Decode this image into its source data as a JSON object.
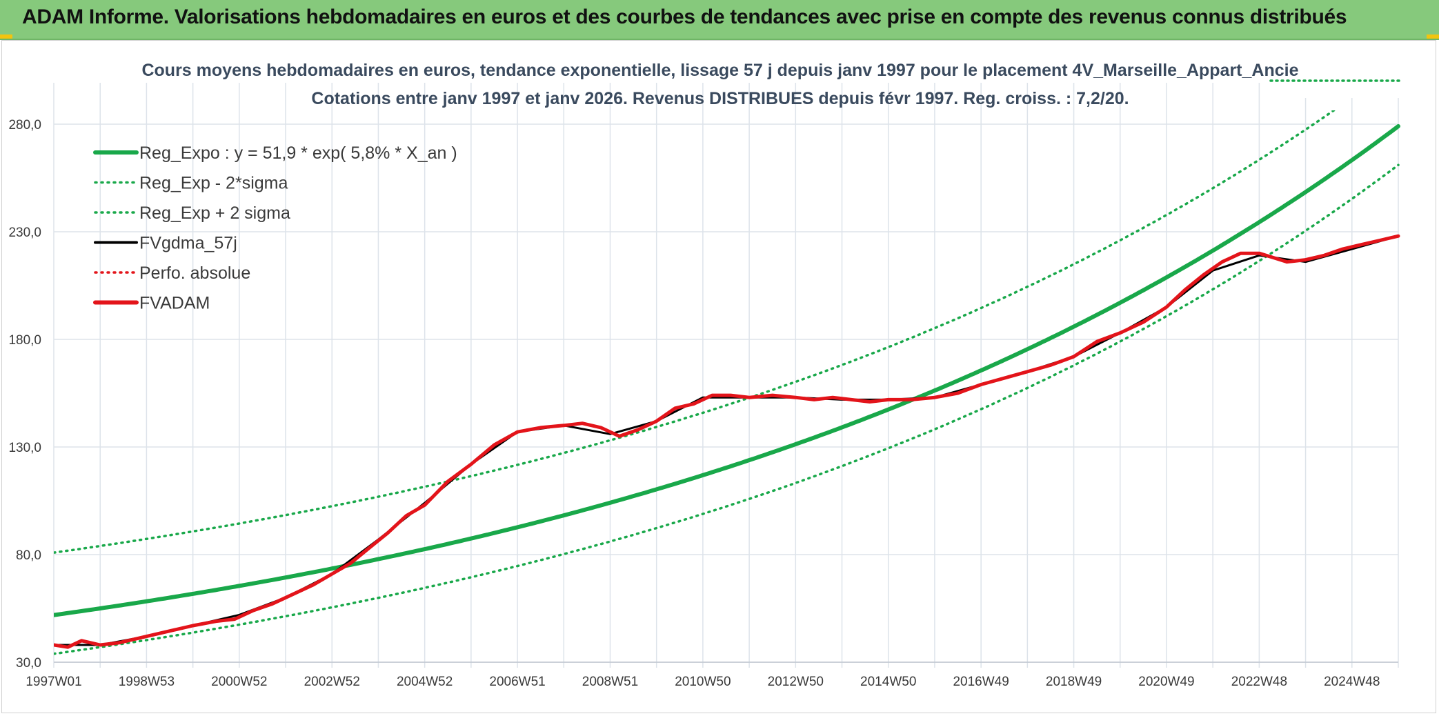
{
  "header": {
    "banner_title": "ADAM Informe. Valorisations hebdomadaires en euros et des courbes de tendances avec prise en compte des revenus connus distribués"
  },
  "colors": {
    "banner_bg": "#86c97c",
    "trend_green": "#19a84a",
    "adam_red": "#e3141a",
    "gdma_black": "#000000",
    "grid": "#dde3ea",
    "corner_accent": "#f2c40f"
  },
  "chart_data": {
    "type": "line",
    "title": "Cours moyens hebdomadaires en euros, tendance exponentielle, lissage 57 j depuis janv 1997 pour le placement 4V_Marseille_Appart_Ancie",
    "subtitle": "Cotations entre janv 1997 et janv 2026. Revenus DISTRIBUES depuis févr 1997. Reg. croiss. : 7,2/20.",
    "xlabel": "",
    "ylabel": "",
    "ylim": [
      30,
      280
    ],
    "xlim": [
      1997.0,
      2026.0
    ],
    "y_ticks": [
      "30,0",
      "80,0",
      "130,0",
      "180,0",
      "230,0",
      "280,0"
    ],
    "y_tick_values": [
      30,
      80,
      130,
      180,
      230,
      280
    ],
    "x_ticks": [
      "1997W01",
      "1998W53",
      "2000W52",
      "2002W52",
      "2004W52",
      "2006W51",
      "2008W51",
      "2010W50",
      "2012W50",
      "2014W50",
      "2016W49",
      "2018W49",
      "2020W49",
      "2022W48",
      "2024W48"
    ],
    "x_tick_values": [
      1997.0,
      1999.0,
      2001.0,
      2003.0,
      2005.0,
      2007.0,
      2009.0,
      2011.0,
      2013.0,
      2015.0,
      2017.0,
      2019.0,
      2021.0,
      2023.0,
      2025.0
    ],
    "grid": true,
    "legend_position": "top-left",
    "legend": [
      {
        "label": "Reg_Expo : y = 51,9 * exp( 5,8% *  X_an )",
        "style": "solid-thick",
        "color": "#19a84a"
      },
      {
        "label": "Reg_Exp - 2*sigma",
        "style": "dotted",
        "color": "#19a84a"
      },
      {
        "label": "Reg_Exp + 2 sigma",
        "style": "dotted",
        "color": "#19a84a"
      },
      {
        "label": "FVgdma_57j",
        "style": "solid",
        "color": "#000000"
      },
      {
        "label": "Perfo. absolue",
        "style": "dotted",
        "color": "#e3141a"
      },
      {
        "label": "FVADAM",
        "style": "solid-thick",
        "color": "#e3141a"
      }
    ],
    "regression": {
      "a": 51.9,
      "rate": 0.058,
      "x0": 1997.0
    },
    "series": [
      {
        "name": "Reg_Expo : y = 51,9 * exp( 5,8% *  X_an )",
        "kind": "function",
        "offset": 0
      },
      {
        "name": "Reg_Exp - 2*sigma",
        "kind": "function",
        "offset": -18
      },
      {
        "name": "Reg_Exp + 2 sigma",
        "kind": "function",
        "offset": 29
      },
      {
        "name": "FVADAM",
        "x": [
          1997.0,
          1997.3,
          1997.6,
          1998.0,
          1998.4,
          1999.0,
          1999.6,
          2000.0,
          2000.5,
          2000.9,
          2001.3,
          2001.7,
          2002.2,
          2002.6,
          2003.0,
          2003.4,
          2003.8,
          2004.2,
          2004.6,
          2005.0,
          2005.5,
          2006.0,
          2006.5,
          2007.0,
          2007.5,
          2008.0,
          2008.4,
          2008.8,
          2009.2,
          2009.6,
          2010.0,
          2010.4,
          2010.8,
          2011.2,
          2011.6,
          2012.0,
          2012.5,
          2013.0,
          2013.4,
          2013.8,
          2014.2,
          2014.6,
          2015.0,
          2015.5,
          2016.0,
          2016.5,
          2017.0,
          2017.5,
          2018.0,
          2018.5,
          2019.0,
          2019.5,
          2020.0,
          2020.5,
          2021.0,
          2021.4,
          2021.8,
          2022.2,
          2022.6,
          2023.0,
          2023.3,
          2023.6,
          2024.0,
          2024.4,
          2024.8,
          2025.2,
          2025.6,
          2026.0
        ],
        "y": [
          38,
          37,
          40,
          38,
          39,
          42,
          45,
          47,
          49,
          50,
          54,
          57,
          62,
          66,
          71,
          76,
          83,
          90,
          98,
          103,
          114,
          122,
          131,
          137,
          139,
          140,
          141,
          139,
          135,
          138,
          142,
          148,
          150,
          154,
          154,
          153,
          154,
          153,
          152,
          153,
          152,
          151,
          152,
          152,
          153,
          155,
          159,
          162,
          165,
          168,
          172,
          179,
          183,
          188,
          195,
          203,
          210,
          216,
          220,
          220,
          218,
          216,
          217,
          219,
          222,
          224,
          226,
          228
        ]
      },
      {
        "name": "FVgdma_57j",
        "x": [
          1997.0,
          1998.0,
          1999.0,
          2000.0,
          2001.0,
          2002.0,
          2003.0,
          2004.0,
          2005.0,
          2006.0,
          2007.0,
          2008.0,
          2009.0,
          2010.0,
          2011.0,
          2012.0,
          2013.0,
          2014.0,
          2015.0,
          2016.0,
          2017.0,
          2018.0,
          2019.0,
          2020.0,
          2021.0,
          2022.0,
          2023.0,
          2024.0,
          2025.0,
          2026.0
        ],
        "y": [
          38,
          38,
          42,
          47,
          52,
          60,
          71,
          87,
          104,
          122,
          137,
          140,
          136,
          142,
          153,
          153,
          153,
          152,
          152,
          153,
          159,
          165,
          172,
          183,
          195,
          212,
          219,
          216,
          222,
          228
        ]
      }
    ]
  }
}
